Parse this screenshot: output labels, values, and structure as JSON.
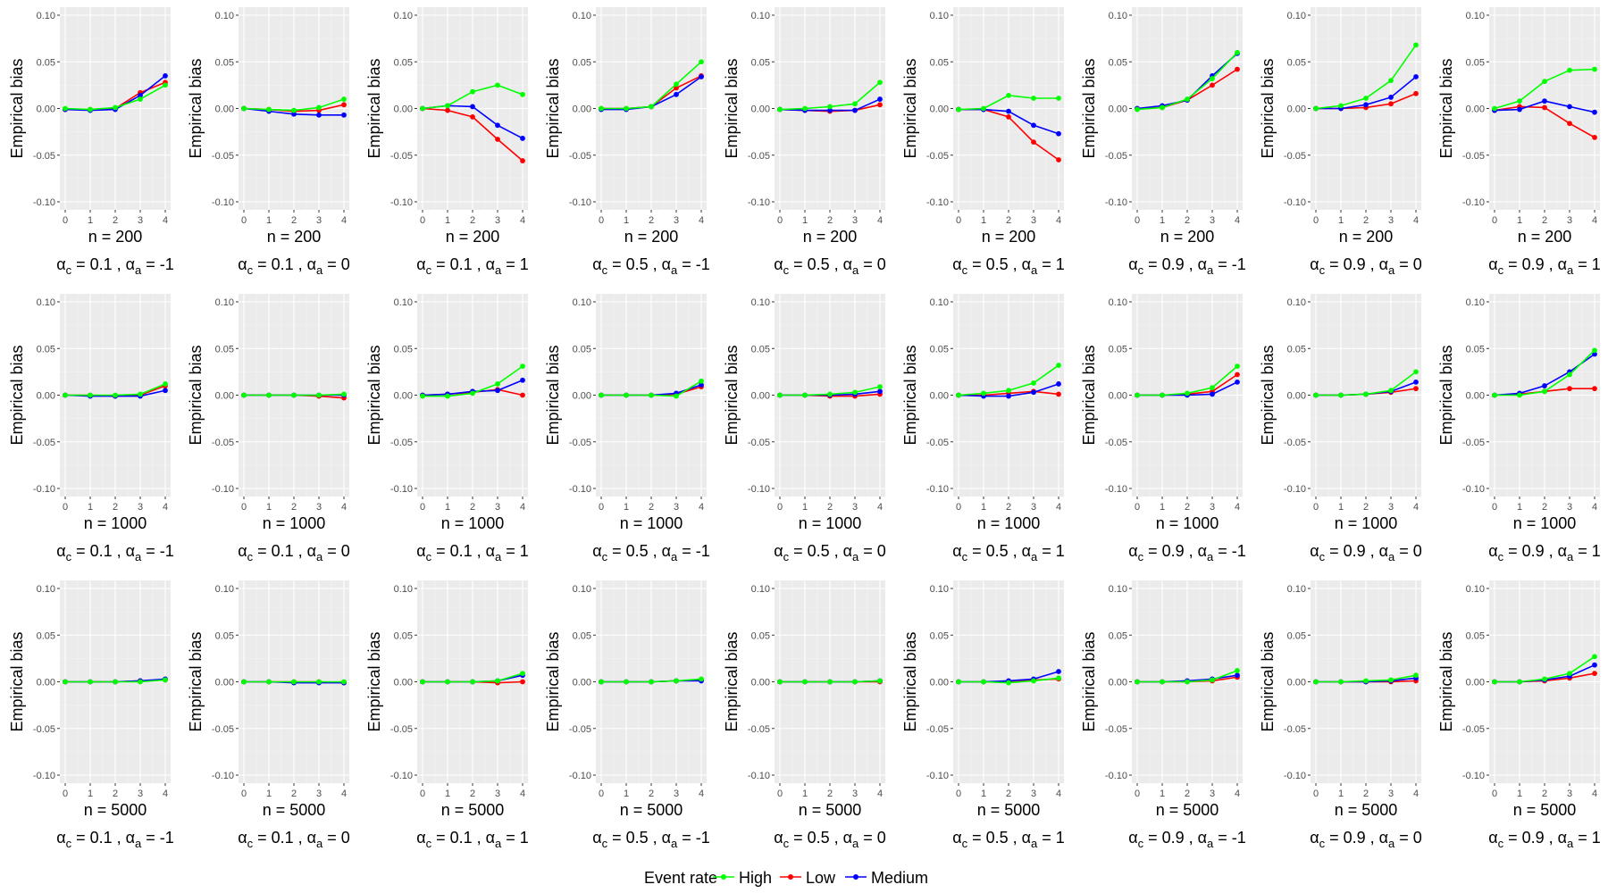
{
  "legend": {
    "title": "Event rate",
    "position": "bottom",
    "entries": [
      {
        "label": "High",
        "color": "#00ff00"
      },
      {
        "label": "Low",
        "color": "#ff0000"
      },
      {
        "label": "Medium",
        "color": "#0000ff"
      }
    ]
  },
  "chart_data": {
    "type": "line",
    "ylabel": "Empirical bias",
    "x": [
      0,
      1,
      2,
      3,
      4
    ],
    "ylim": [
      -0.1,
      0.1
    ],
    "yticks": [
      "0.10",
      "0.05",
      "0.00",
      "-0.05",
      "-0.10"
    ],
    "xticks": [
      "0",
      "1",
      "2",
      "3",
      "4"
    ],
    "grid": true,
    "row_labels": [
      "n = 200",
      "n = 1000",
      "n = 5000"
    ],
    "col_labels": [
      {
        "c": "0.1",
        "a": "-1"
      },
      {
        "c": "0.1",
        "a": "0"
      },
      {
        "c": "0.1",
        "a": "1"
      },
      {
        "c": "0.5",
        "a": "-1"
      },
      {
        "c": "0.5",
        "a": "0"
      },
      {
        "c": "0.5",
        "a": "1"
      },
      {
        "c": "0.9",
        "a": "-1"
      },
      {
        "c": "0.9",
        "a": "0"
      },
      {
        "c": "0.9",
        "a": "1"
      }
    ],
    "panels": [
      [
        {
          "High": [
            0.0,
            -0.001,
            0.001,
            0.01,
            0.025
          ],
          "Low": [
            -0.001,
            -0.001,
            0.0,
            0.017,
            0.028
          ],
          "Medium": [
            -0.001,
            -0.002,
            -0.001,
            0.014,
            0.035
          ]
        },
        {
          "High": [
            0.0,
            -0.001,
            -0.002,
            0.001,
            0.01
          ],
          "Low": [
            0.0,
            -0.001,
            -0.003,
            -0.002,
            0.004
          ],
          "Medium": [
            0.0,
            -0.003,
            -0.006,
            -0.007,
            -0.007
          ]
        },
        {
          "High": [
            0.0,
            0.003,
            0.018,
            0.025,
            0.015
          ],
          "Low": [
            0.0,
            -0.002,
            -0.009,
            -0.033,
            -0.056
          ],
          "Medium": [
            0.0,
            0.003,
            0.002,
            -0.018,
            -0.032
          ]
        },
        {
          "High": [
            0.0,
            0.0,
            0.002,
            0.026,
            0.05
          ],
          "Low": [
            0.0,
            0.0,
            0.002,
            0.022,
            0.035
          ],
          "Medium": [
            -0.001,
            -0.001,
            0.002,
            0.015,
            0.034
          ]
        },
        {
          "High": [
            -0.001,
            0.0,
            0.002,
            0.005,
            0.028
          ],
          "Low": [
            -0.001,
            -0.002,
            -0.003,
            -0.002,
            0.004
          ],
          "Medium": [
            -0.001,
            -0.002,
            -0.002,
            -0.002,
            0.01
          ]
        },
        {
          "High": [
            -0.001,
            0.0,
            0.014,
            0.011,
            0.011
          ],
          "Low": [
            -0.001,
            -0.001,
            -0.009,
            -0.036,
            -0.055
          ],
          "Medium": [
            -0.001,
            -0.001,
            -0.003,
            -0.018,
            -0.027
          ]
        },
        {
          "High": [
            -0.001,
            0.001,
            0.01,
            0.032,
            0.06
          ],
          "Low": [
            0.0,
            0.001,
            0.009,
            0.025,
            0.042
          ],
          "Medium": [
            0.0,
            0.003,
            0.009,
            0.035,
            0.059
          ]
        },
        {
          "High": [
            0.0,
            0.003,
            0.011,
            0.03,
            0.068
          ],
          "Low": [
            0.0,
            0.0,
            0.001,
            0.005,
            0.016
          ],
          "Medium": [
            0.0,
            0.0,
            0.004,
            0.012,
            0.034
          ]
        },
        {
          "High": [
            0.0,
            0.008,
            0.029,
            0.041,
            0.042
          ],
          "Low": [
            -0.002,
            0.002,
            0.001,
            -0.016,
            -0.031
          ],
          "Medium": [
            -0.002,
            -0.001,
            0.008,
            0.002,
            -0.004
          ]
        }
      ],
      [
        {
          "High": [
            0.0,
            0.0,
            0.0,
            0.001,
            0.012
          ],
          "Low": [
            0.0,
            0.0,
            -0.001,
            0.0,
            0.01
          ],
          "Medium": [
            0.0,
            -0.001,
            -0.001,
            -0.001,
            0.005
          ]
        },
        {
          "High": [
            0.0,
            0.0,
            0.0,
            0.0,
            0.001
          ],
          "Low": [
            0.0,
            0.0,
            0.0,
            -0.001,
            -0.003
          ],
          "Medium": [
            0.0,
            0.0,
            0.0,
            0.0,
            0.0
          ]
        },
        {
          "High": [
            -0.001,
            -0.001,
            0.002,
            0.012,
            0.031
          ],
          "Low": [
            0.0,
            0.001,
            0.003,
            0.006,
            0.0
          ],
          "Medium": [
            0.0,
            0.001,
            0.004,
            0.005,
            0.016
          ]
        },
        {
          "High": [
            0.0,
            0.0,
            0.0,
            -0.001,
            0.015
          ],
          "Low": [
            0.0,
            0.0,
            0.0,
            0.001,
            0.009
          ],
          "Medium": [
            0.0,
            0.0,
            0.0,
            0.002,
            0.011
          ]
        },
        {
          "High": [
            0.0,
            0.0,
            0.001,
            0.003,
            0.009
          ],
          "Low": [
            0.0,
            0.0,
            -0.001,
            -0.001,
            0.001
          ],
          "Medium": [
            0.0,
            0.0,
            0.0,
            0.001,
            0.004
          ]
        },
        {
          "High": [
            0.0,
            0.002,
            0.005,
            0.013,
            0.032
          ],
          "Low": [
            0.0,
            0.0,
            0.002,
            0.004,
            0.001
          ],
          "Medium": [
            0.0,
            -0.001,
            -0.001,
            0.003,
            0.012
          ]
        },
        {
          "High": [
            0.0,
            0.0,
            0.002,
            0.008,
            0.031
          ],
          "Low": [
            0.0,
            0.0,
            0.001,
            0.004,
            0.022
          ],
          "Medium": [
            0.0,
            0.0,
            0.0,
            0.001,
            0.014
          ]
        },
        {
          "High": [
            0.0,
            0.0,
            0.001,
            0.005,
            0.025
          ],
          "Low": [
            0.0,
            0.0,
            0.001,
            0.003,
            0.007
          ],
          "Medium": [
            0.0,
            0.0,
            0.001,
            0.004,
            0.014
          ]
        },
        {
          "High": [
            0.0,
            0.0,
            0.004,
            0.022,
            0.048
          ],
          "Low": [
            0.0,
            0.001,
            0.004,
            0.007,
            0.007
          ],
          "Medium": [
            0.0,
            0.002,
            0.01,
            0.025,
            0.044
          ]
        }
      ],
      [
        {
          "High": [
            0.0,
            0.0,
            0.0,
            0.0,
            0.002
          ],
          "Low": [
            0.0,
            0.0,
            0.0,
            0.001,
            0.002
          ],
          "Medium": [
            0.0,
            0.0,
            0.0,
            0.001,
            0.003
          ]
        },
        {
          "High": [
            0.0,
            0.0,
            0.0,
            0.0,
            0.0
          ],
          "Low": [
            0.0,
            0.0,
            0.0,
            0.0,
            -0.001
          ],
          "Medium": [
            0.0,
            0.0,
            -0.001,
            -0.001,
            -0.001
          ]
        },
        {
          "High": [
            0.0,
            0.0,
            0.0,
            0.001,
            0.009
          ],
          "Low": [
            0.0,
            0.0,
            0.0,
            -0.001,
            0.0
          ],
          "Medium": [
            0.0,
            0.0,
            0.0,
            0.001,
            0.007
          ]
        },
        {
          "High": [
            0.0,
            0.0,
            0.0,
            0.001,
            0.003
          ],
          "Low": [
            0.0,
            0.0,
            0.0,
            0.001,
            0.002
          ],
          "Medium": [
            0.0,
            0.0,
            0.0,
            0.001,
            0.001
          ]
        },
        {
          "High": [
            0.0,
            0.0,
            0.0,
            0.0,
            0.001
          ],
          "Low": [
            0.0,
            0.0,
            0.0,
            0.0,
            0.0
          ],
          "Medium": [
            0.0,
            0.0,
            0.0,
            0.0,
            0.001
          ]
        },
        {
          "High": [
            0.0,
            0.0,
            -0.001,
            0.001,
            0.004
          ],
          "Low": [
            0.0,
            0.0,
            0.0,
            0.002,
            0.003
          ],
          "Medium": [
            0.0,
            0.0,
            0.001,
            0.003,
            0.011
          ]
        },
        {
          "High": [
            0.0,
            0.0,
            0.0,
            0.002,
            0.012
          ],
          "Low": [
            0.0,
            0.0,
            0.0,
            0.001,
            0.005
          ],
          "Medium": [
            0.0,
            0.0,
            0.001,
            0.003,
            0.007
          ]
        },
        {
          "High": [
            0.0,
            0.0,
            0.001,
            0.002,
            0.007
          ],
          "Low": [
            0.0,
            0.0,
            0.0,
            0.0,
            0.001
          ],
          "Medium": [
            0.0,
            0.0,
            0.0,
            0.001,
            0.004
          ]
        },
        {
          "High": [
            0.0,
            0.0,
            0.003,
            0.009,
            0.027
          ],
          "Low": [
            0.0,
            0.0,
            0.001,
            0.004,
            0.009
          ],
          "Medium": [
            0.0,
            0.0,
            0.002,
            0.006,
            0.018
          ]
        }
      ]
    ]
  }
}
